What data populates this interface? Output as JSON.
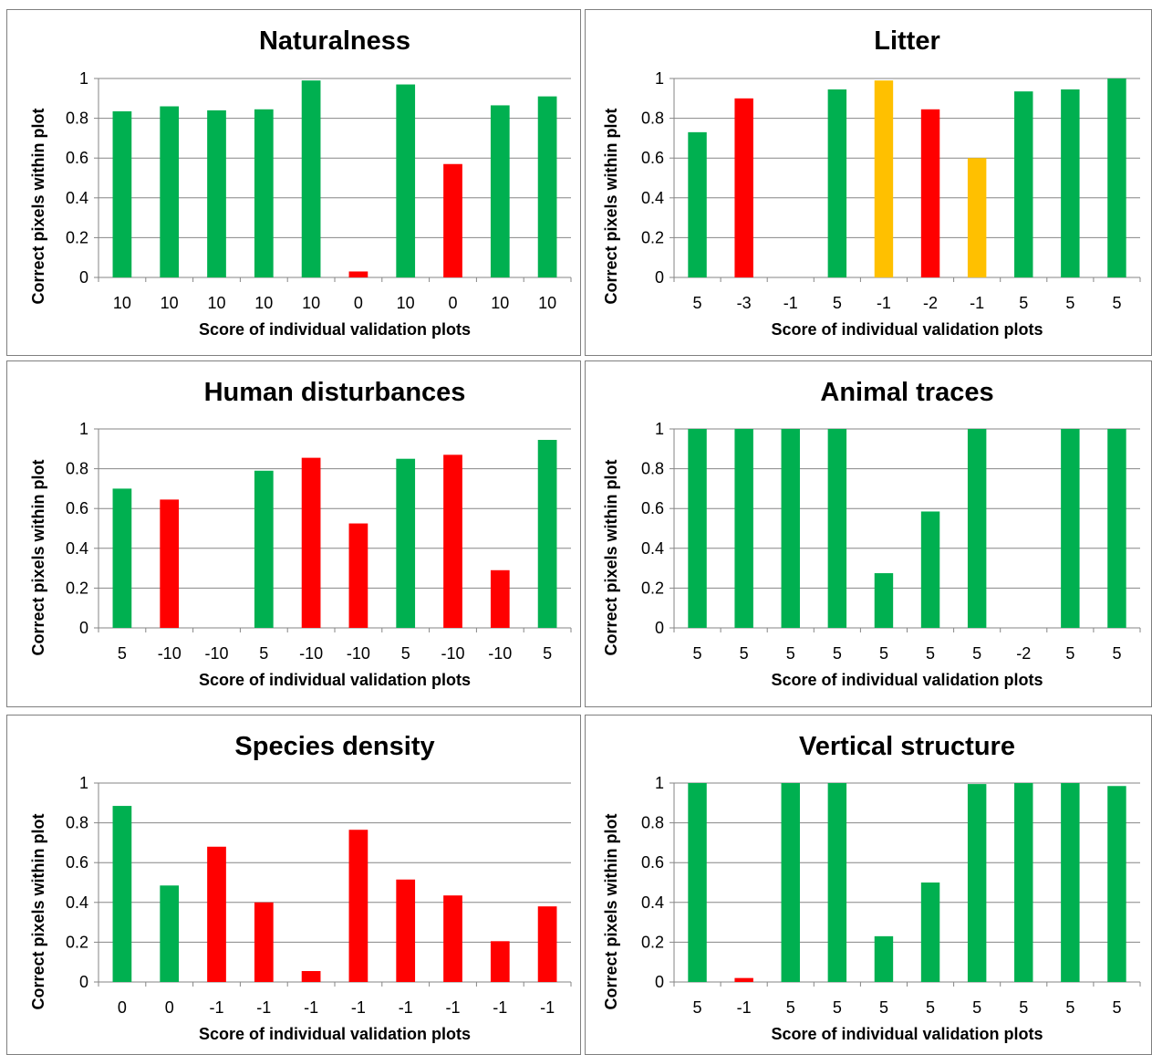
{
  "colors": {
    "green": "#00b050",
    "red": "#ff0000",
    "orange": "#ffc000"
  },
  "chart_data": [
    {
      "type": "bar",
      "title": "Naturalness",
      "xlabel": "Score of individual validation plots",
      "ylabel": "Correct pixels within plot",
      "ylim": [
        0,
        1
      ],
      "yticks": [
        "0",
        "0.2",
        "0.4",
        "0.6",
        "0.8",
        "1"
      ],
      "grid": true,
      "categories": [
        "10",
        "10",
        "10",
        "10",
        "10",
        "0",
        "10",
        "0",
        "10",
        "10"
      ],
      "values": [
        0.835,
        0.86,
        0.84,
        0.845,
        0.99,
        0.03,
        0.97,
        0.57,
        0.865,
        0.91
      ],
      "bar_colors": [
        "green",
        "green",
        "green",
        "green",
        "green",
        "red",
        "green",
        "red",
        "green",
        "green"
      ]
    },
    {
      "type": "bar",
      "title": "Litter",
      "xlabel": "Score of individual validation plots",
      "ylabel": "Correct pixels within plot",
      "ylim": [
        0,
        1
      ],
      "yticks": [
        "0",
        "0.2",
        "0.4",
        "0.6",
        "0.8",
        "1"
      ],
      "grid": true,
      "categories": [
        "5",
        "-3",
        "-1",
        "5",
        "-1",
        "-2",
        "-1",
        "5",
        "5",
        "5"
      ],
      "values": [
        0.73,
        0.9,
        0,
        0.945,
        0.99,
        0.845,
        0.6,
        0.935,
        0.945,
        1.0
      ],
      "bar_colors": [
        "green",
        "red",
        "green",
        "green",
        "orange",
        "red",
        "orange",
        "green",
        "green",
        "green"
      ]
    },
    {
      "type": "bar",
      "title": "Human disturbances",
      "xlabel": "Score of individual validation plots",
      "ylabel": "Correct pixels within plot",
      "ylim": [
        0,
        1
      ],
      "yticks": [
        "0",
        "0.2",
        "0.4",
        "0.6",
        "0.8",
        "1"
      ],
      "grid": true,
      "categories": [
        "5",
        "-10",
        "-10",
        "5",
        "-10",
        "-10",
        "5",
        "-10",
        "-10",
        "5"
      ],
      "values": [
        0.7,
        0.645,
        0,
        0.79,
        0.855,
        0.525,
        0.85,
        0.87,
        0.29,
        0.945
      ],
      "bar_colors": [
        "green",
        "red",
        "red",
        "green",
        "red",
        "red",
        "green",
        "red",
        "red",
        "green"
      ]
    },
    {
      "type": "bar",
      "title": "Animal traces",
      "xlabel": "Score of individual validation plots",
      "ylabel": "Correct pixels within plot",
      "ylim": [
        0,
        1
      ],
      "yticks": [
        "0",
        "0.2",
        "0.4",
        "0.6",
        "0.8",
        "1"
      ],
      "grid": true,
      "categories": [
        "5",
        "5",
        "5",
        "5",
        "5",
        "5",
        "5",
        "-2",
        "5",
        "5"
      ],
      "values": [
        1.0,
        1.0,
        1.0,
        1.0,
        0.275,
        0.585,
        1.0,
        0,
        1.0,
        1.0
      ],
      "bar_colors": [
        "green",
        "green",
        "green",
        "green",
        "green",
        "green",
        "green",
        "red",
        "green",
        "green"
      ]
    },
    {
      "type": "bar",
      "title": "Species density",
      "xlabel": "Score of individual validation plots",
      "ylabel": "Correct pixels within plot",
      "ylim": [
        0,
        1
      ],
      "yticks": [
        "0",
        "0.2",
        "0.4",
        "0.6",
        "0.8",
        "1"
      ],
      "grid": true,
      "categories": [
        "0",
        "0",
        "-1",
        "-1",
        "-1",
        "-1",
        "-1",
        "-1",
        "-1",
        "-1"
      ],
      "values": [
        0.885,
        0.485,
        0.68,
        0.4,
        0.055,
        0.765,
        0.515,
        0.435,
        0.205,
        0.38
      ],
      "bar_colors": [
        "green",
        "green",
        "red",
        "red",
        "red",
        "red",
        "red",
        "red",
        "red",
        "red"
      ]
    },
    {
      "type": "bar",
      "title": "Vertical structure",
      "xlabel": "Score of individual validation plots",
      "ylabel": "Correct pixels within plot",
      "ylim": [
        0,
        1
      ],
      "yticks": [
        "0",
        "0.2",
        "0.4",
        "0.6",
        "0.8",
        "1"
      ],
      "grid": true,
      "categories": [
        "5",
        "-1",
        "5",
        "5",
        "5",
        "5",
        "5",
        "5",
        "5",
        "5"
      ],
      "values": [
        1.0,
        0.02,
        1.0,
        1.0,
        0.23,
        0.5,
        0.995,
        1.0,
        1.0,
        0.985
      ],
      "bar_colors": [
        "green",
        "red",
        "green",
        "green",
        "green",
        "green",
        "green",
        "green",
        "green",
        "green"
      ]
    }
  ]
}
